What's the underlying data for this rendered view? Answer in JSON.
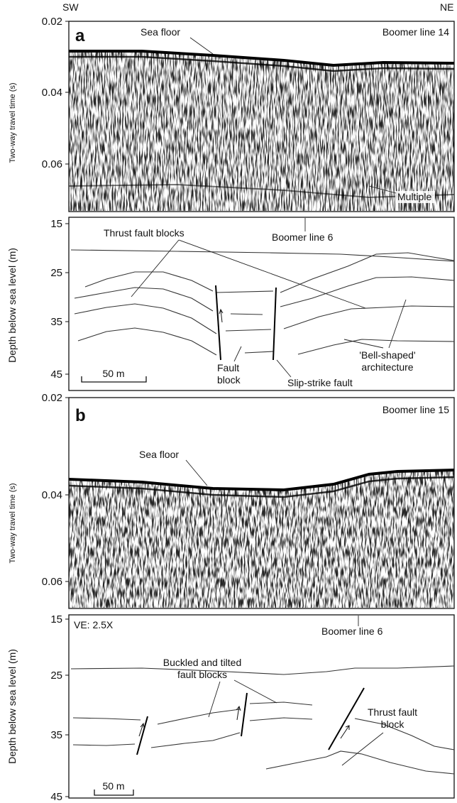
{
  "compass": {
    "left": "SW",
    "right": "NE"
  },
  "panel_a": {
    "letter": "a",
    "seismic": {
      "line_name": "Boomer line 14",
      "ylabel": "Two-way travel time (s)",
      "ticks": [
        "0.02",
        "0.04",
        "0.06"
      ],
      "sea_floor": "Sea floor",
      "multiple": "Multiple"
    },
    "interp": {
      "ylabel": "Depth below sea level (m)",
      "ticks": [
        "15",
        "25",
        "35",
        "45"
      ],
      "boomer_ref": "Boomer line 6",
      "thrust": "Thrust fault blocks",
      "fault_block_1": "Fault",
      "fault_block_2": "block",
      "slip_fault": "Slip-strike fault",
      "bell_1": "'Bell-shaped'",
      "bell_2": "architecture",
      "scale": "50 m"
    }
  },
  "panel_b": {
    "letter": "b",
    "seismic": {
      "line_name": "Boomer line 15",
      "ylabel": "Two-way travel time (s)",
      "ticks": [
        "0.02",
        "0.04",
        "0.06"
      ],
      "sea_floor": "Sea floor"
    },
    "interp": {
      "ylabel": "Depth below sea level (m)",
      "ticks": [
        "15",
        "25",
        "35",
        "45"
      ],
      "ve": "VE: 2.5X",
      "boomer_ref": "Boomer line 6",
      "buckled_1": "Buckled and tilted",
      "buckled_2": "fault blocks",
      "thrust_1": "Thrust fault",
      "thrust_2": "block",
      "scale": "50 m"
    }
  }
}
